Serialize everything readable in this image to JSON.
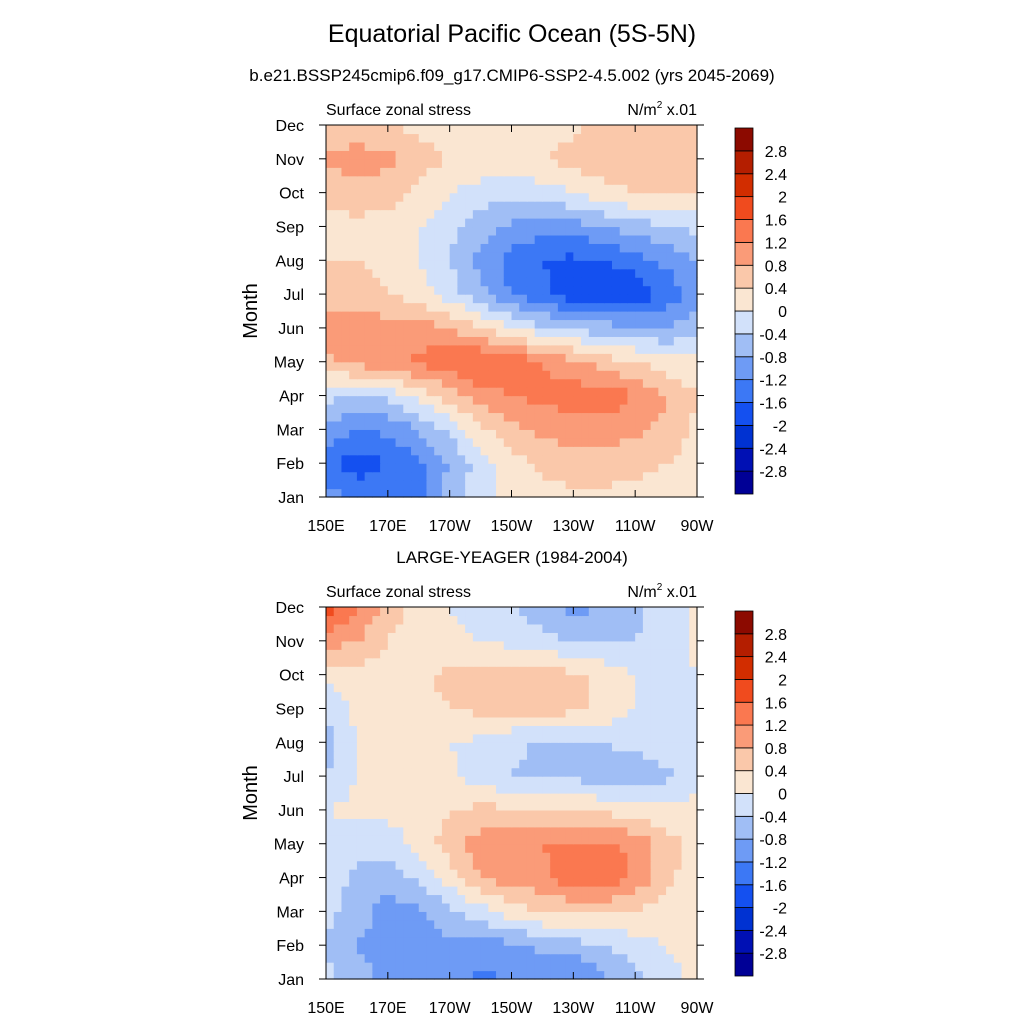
{
  "title": "Equatorial Pacific Ocean (5S-5N)",
  "subtitle": "b.e21.BSSP245cmip6.f09_g17.CMIP6-SSP2-4.5.002 (yrs 2045-2069)",
  "colormap": [
    "#000096",
    "#0010b4",
    "#0032d2",
    "#1450f0",
    "#3c78f5",
    "#6e9bf5",
    "#a0bef5",
    "#d2e1fa",
    "#fae6d2",
    "#fac8aa",
    "#fa9b78",
    "#fa7850",
    "#f04b1e",
    "#d22d00",
    "#b41e00",
    "#8c0a00"
  ],
  "chart_data": [
    {
      "type": "heatmap",
      "panel_title": "",
      "left_label": "Surface zonal stress",
      "units_label": "N/m",
      "units_exp": "2",
      "units_suffix": " x.01",
      "ylabel": "Month",
      "x_ticks": [
        "150E",
        "170E",
        "170W",
        "150W",
        "130W",
        "110W",
        "90W"
      ],
      "y_ticks": [
        "Jan",
        "Feb",
        "Mar",
        "Apr",
        "May",
        "Jun",
        "Jul",
        "Aug",
        "Sep",
        "Oct",
        "Nov",
        "Dec"
      ],
      "colorbar_labels": [
        "-2.8",
        "-2.4",
        "-2",
        "-1.6",
        "-1.2",
        "-0.8",
        "-0.4",
        "0",
        "0.4",
        "0.8",
        "1.2",
        "1.6",
        "2",
        "2.4",
        "2.8"
      ],
      "x_lon": [
        150,
        160,
        170,
        180,
        190,
        200,
        210,
        220,
        230,
        240,
        250,
        260,
        270
      ],
      "z": [
        [
          -1.0,
          -1.3,
          -1.4,
          -1.3,
          -0.6,
          -0.1,
          0.1,
          0.2,
          0.3,
          0.3,
          0.3,
          0.2,
          0.1
        ],
        [
          -1.5,
          -1.8,
          -1.6,
          -1.3,
          -0.8,
          -0.2,
          0.2,
          0.5,
          0.6,
          0.6,
          0.5,
          0.4,
          0.2
        ],
        [
          -0.9,
          -1.2,
          -1.1,
          -0.8,
          -0.3,
          0.3,
          0.7,
          0.9,
          1.0,
          1.0,
          0.9,
          0.7,
          0.3
        ],
        [
          -0.3,
          -0.4,
          -0.3,
          0.1,
          0.6,
          1.0,
          1.2,
          1.3,
          1.4,
          1.5,
          1.2,
          0.8,
          0.4
        ],
        [
          0.7,
          0.9,
          1.1,
          1.3,
          1.5,
          1.7,
          1.5,
          1.2,
          0.9,
          0.6,
          0.4,
          0.2,
          0.1
        ],
        [
          1.0,
          1.0,
          1.0,
          1.0,
          0.8,
          0.4,
          0.0,
          -0.3,
          -0.5,
          -0.6,
          -0.7,
          -0.8,
          -0.6
        ],
        [
          0.6,
          0.6,
          0.4,
          0.2,
          -0.2,
          -0.7,
          -1.2,
          -1.5,
          -1.8,
          -2.0,
          -1.9,
          -1.5,
          -1.0
        ],
        [
          0.4,
          0.4,
          0.2,
          0.0,
          -0.4,
          -0.9,
          -1.4,
          -1.6,
          -1.7,
          -1.6,
          -1.4,
          -1.1,
          -0.8
        ],
        [
          0.2,
          0.3,
          0.2,
          0.0,
          -0.3,
          -0.6,
          -0.9,
          -1.0,
          -1.0,
          -0.8,
          -0.6,
          -0.4,
          -0.3
        ],
        [
          0.5,
          0.6,
          0.6,
          0.3,
          0.0,
          -0.2,
          -0.3,
          -0.2,
          0.0,
          0.2,
          0.4,
          0.5,
          0.5
        ],
        [
          0.9,
          1.0,
          0.9,
          0.6,
          0.4,
          0.3,
          0.2,
          0.4,
          0.6,
          0.7,
          0.8,
          0.8,
          0.7
        ],
        [
          0.5,
          0.5,
          0.4,
          0.3,
          0.2,
          0.1,
          0.0,
          0.1,
          0.3,
          0.5,
          0.6,
          0.6,
          0.5
        ]
      ]
    },
    {
      "type": "heatmap",
      "panel_title": "LARGE-YEAGER (1984-2004)",
      "left_label": "Surface zonal stress",
      "units_label": "N/m",
      "units_exp": "2",
      "units_suffix": " x.01",
      "ylabel": "Month",
      "x_ticks": [
        "150E",
        "170E",
        "170W",
        "150W",
        "130W",
        "110W",
        "90W"
      ],
      "y_ticks": [
        "Jan",
        "Feb",
        "Mar",
        "Apr",
        "May",
        "Jun",
        "Jul",
        "Aug",
        "Sep",
        "Oct",
        "Nov",
        "Dec"
      ],
      "colorbar_labels": [
        "-2.8",
        "-2.4",
        "-2",
        "-1.6",
        "-1.2",
        "-0.8",
        "-0.4",
        "0",
        "0.4",
        "0.8",
        "1.2",
        "1.6",
        "2",
        "2.4",
        "2.8"
      ],
      "x_lon": [
        150,
        160,
        170,
        180,
        190,
        200,
        210,
        220,
        230,
        240,
        250,
        260,
        270
      ],
      "z": [
        [
          -0.3,
          -0.6,
          -0.9,
          -1.0,
          -1.1,
          -1.3,
          -1.2,
          -1.1,
          -1.3,
          -0.9,
          -0.5,
          -0.2,
          0.1
        ],
        [
          -0.4,
          -0.8,
          -1.0,
          -1.0,
          -0.9,
          -1.0,
          -0.9,
          -0.7,
          -0.6,
          -0.4,
          -0.2,
          0.0,
          0.2
        ],
        [
          -0.3,
          -0.6,
          -1.0,
          -0.9,
          -0.5,
          -0.2,
          0.2,
          0.4,
          0.5,
          0.5,
          0.4,
          0.2,
          0.2
        ],
        [
          -0.2,
          -0.5,
          -0.6,
          -0.3,
          0.2,
          0.8,
          1.0,
          1.1,
          1.5,
          1.5,
          1.1,
          0.5,
          0.2
        ],
        [
          -0.2,
          -0.3,
          -0.2,
          0.1,
          0.6,
          1.0,
          1.0,
          1.2,
          1.3,
          1.3,
          1.1,
          0.6,
          0.3
        ],
        [
          0.0,
          0.1,
          0.1,
          0.2,
          0.4,
          0.5,
          0.5,
          0.5,
          0.4,
          0.3,
          0.2,
          0.1,
          0.1
        ],
        [
          -0.4,
          0.0,
          0.2,
          0.2,
          0.1,
          -0.2,
          -0.4,
          -0.5,
          -0.5,
          -0.6,
          -0.7,
          -0.5,
          -0.1
        ],
        [
          -0.6,
          0.0,
          0.2,
          0.2,
          0.0,
          -0.1,
          -0.3,
          -0.5,
          -0.4,
          -0.4,
          -0.3,
          -0.1,
          0.0
        ],
        [
          -0.3,
          0.1,
          0.2,
          0.3,
          0.4,
          0.5,
          0.5,
          0.6,
          0.5,
          0.3,
          0.0,
          -0.1,
          0.0
        ],
        [
          0.1,
          0.2,
          0.3,
          0.3,
          0.5,
          0.6,
          0.6,
          0.6,
          0.5,
          0.3,
          0.0,
          -0.2,
          0.0
        ],
        [
          1.0,
          0.8,
          0.4,
          0.2,
          0.1,
          0.0,
          -0.1,
          -0.3,
          -0.4,
          -0.5,
          -0.4,
          -0.2,
          0.1
        ],
        [
          1.8,
          1.3,
          0.6,
          0.2,
          0.0,
          -0.2,
          -0.4,
          -0.6,
          -0.9,
          -0.8,
          -0.5,
          -0.2,
          0.1
        ]
      ]
    }
  ]
}
